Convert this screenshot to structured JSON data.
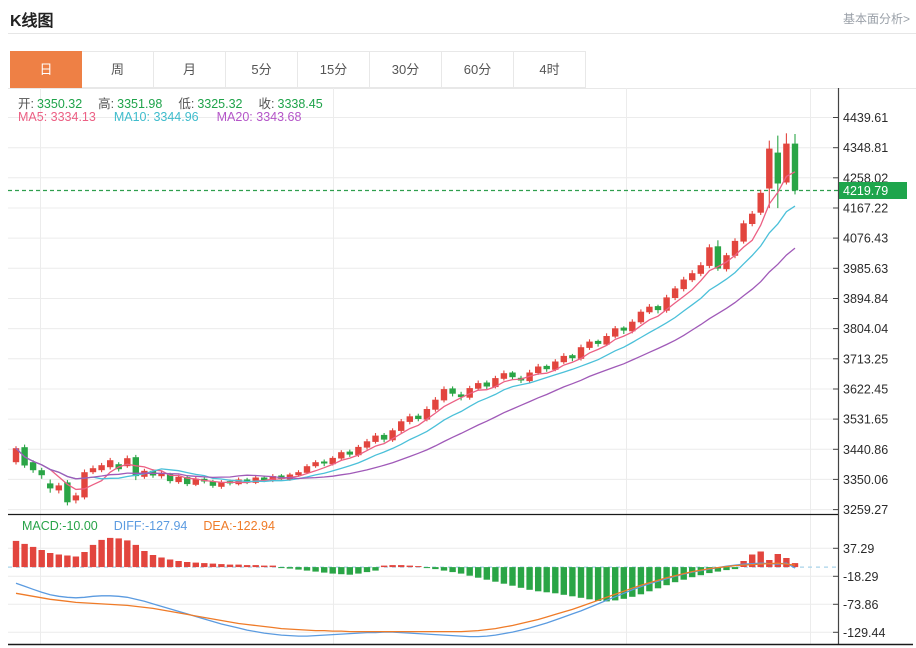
{
  "header": {
    "title": "K线图",
    "link": "基本面分析>"
  },
  "tabs": {
    "items": [
      {
        "label": "日",
        "active": true
      },
      {
        "label": "周",
        "active": false
      },
      {
        "label": "月",
        "active": false
      },
      {
        "label": "5分",
        "active": false
      },
      {
        "label": "15分",
        "active": false
      },
      {
        "label": "30分",
        "active": false
      },
      {
        "label": "60分",
        "active": false
      },
      {
        "label": "4时",
        "active": false
      }
    ]
  },
  "legend": {
    "ohlc": {
      "o_label": "开:",
      "o": "3350.32",
      "h_label": "高:",
      "h": "3351.98",
      "l_label": "低:",
      "l": "3325.32",
      "c_label": "收:",
      "c": "3338.45"
    },
    "ma": {
      "ma5": "MA5: 3334.13",
      "ma10": "MA10: 3344.96",
      "ma20": "MA20: 3343.68"
    },
    "macd": {
      "macd": "MACD:-10.00",
      "diff": "DIFF:-127.94",
      "dea": "DEA:-122.94"
    }
  },
  "colors": {
    "up": "#e2453e",
    "down": "#2aa546",
    "ma5": "#ec6084",
    "ma10": "#4bc0d9",
    "ma20": "#a05ab8",
    "diff_line": "#5b9be0",
    "dea_line": "#ef7b28",
    "price_tag_bg": "#1ea54c",
    "price_dashed": "#2f9e4e",
    "zero_dashed": "#a9d3ea",
    "grid": "#ececec",
    "axis": "#444444",
    "divider": "#1a1a1a",
    "tick_text": "#2b2b2b",
    "tab_active_bg": "#ee8045"
  },
  "chart_data": {
    "type": "candlestick+macd",
    "price_axis": {
      "ticks": [
        4439.61,
        4348.81,
        4258.02,
        4167.22,
        4076.43,
        3985.63,
        3894.84,
        3804.04,
        3713.25,
        3622.45,
        3531.65,
        3440.86,
        3350.06,
        3259.27
      ]
    },
    "price_line": {
      "value": 4219.79,
      "label": "4219.79"
    },
    "v_gridlines": [
      40,
      333,
      626,
      810
    ],
    "ma_windows": [
      5,
      10,
      20
    ],
    "candles": [
      [
        3402,
        3450,
        3395,
        3444
      ],
      [
        3447,
        3455,
        3385,
        3392
      ],
      [
        3402,
        3408,
        3370,
        3378
      ],
      [
        3378,
        3385,
        3352,
        3363
      ],
      [
        3338,
        3350,
        3310,
        3323
      ],
      [
        3317,
        3340,
        3308,
        3332
      ],
      [
        3341,
        3348,
        3272,
        3281
      ],
      [
        3287,
        3310,
        3278,
        3302
      ],
      [
        3296,
        3380,
        3290,
        3372
      ],
      [
        3372,
        3392,
        3366,
        3384
      ],
      [
        3378,
        3400,
        3372,
        3393
      ],
      [
        3387,
        3415,
        3380,
        3408
      ],
      [
        3396,
        3402,
        3374,
        3381
      ],
      [
        3390,
        3422,
        3385,
        3414
      ],
      [
        3417,
        3424,
        3348,
        3360
      ],
      [
        3358,
        3382,
        3352,
        3376
      ],
      [
        3376,
        3381,
        3355,
        3362
      ],
      [
        3360,
        3375,
        3353,
        3368
      ],
      [
        3366,
        3370,
        3338,
        3345
      ],
      [
        3342,
        3364,
        3337,
        3358
      ],
      [
        3357,
        3362,
        3330,
        3336
      ],
      [
        3334,
        3358,
        3330,
        3352
      ],
      [
        3352,
        3357,
        3338,
        3344
      ],
      [
        3344,
        3349,
        3325,
        3331
      ],
      [
        3328,
        3348,
        3322,
        3342
      ],
      [
        3345,
        3350,
        3332,
        3338
      ],
      [
        3336,
        3356,
        3332,
        3350
      ],
      [
        3350,
        3355,
        3336,
        3342
      ],
      [
        3340,
        3362,
        3336,
        3356
      ],
      [
        3356,
        3360,
        3342,
        3348
      ],
      [
        3346,
        3366,
        3342,
        3360
      ],
      [
        3362,
        3366,
        3346,
        3352
      ],
      [
        3350,
        3370,
        3346,
        3365
      ],
      [
        3363,
        3378,
        3358,
        3372
      ],
      [
        3370,
        3396,
        3366,
        3390
      ],
      [
        3390,
        3408,
        3385,
        3402
      ],
      [
        3404,
        3410,
        3390,
        3398
      ],
      [
        3396,
        3420,
        3392,
        3415
      ],
      [
        3413,
        3438,
        3408,
        3432
      ],
      [
        3434,
        3440,
        3418,
        3425
      ],
      [
        3423,
        3454,
        3418,
        3448
      ],
      [
        3446,
        3472,
        3440,
        3465
      ],
      [
        3463,
        3490,
        3458,
        3482
      ],
      [
        3484,
        3490,
        3462,
        3470
      ],
      [
        3468,
        3504,
        3463,
        3498
      ],
      [
        3496,
        3532,
        3490,
        3525
      ],
      [
        3523,
        3548,
        3516,
        3540
      ],
      [
        3542,
        3548,
        3525,
        3532
      ],
      [
        3530,
        3570,
        3525,
        3562
      ],
      [
        3560,
        3598,
        3554,
        3590
      ],
      [
        3588,
        3630,
        3582,
        3622
      ],
      [
        3624,
        3630,
        3600,
        3608
      ],
      [
        3606,
        3614,
        3588,
        3598
      ],
      [
        3596,
        3632,
        3590,
        3625
      ],
      [
        3623,
        3648,
        3618,
        3640
      ],
      [
        3642,
        3648,
        3622,
        3630
      ],
      [
        3628,
        3662,
        3624,
        3655
      ],
      [
        3653,
        3678,
        3648,
        3670
      ],
      [
        3672,
        3676,
        3650,
        3658
      ],
      [
        3656,
        3662,
        3640,
        3648
      ],
      [
        3646,
        3680,
        3642,
        3672
      ],
      [
        3670,
        3698,
        3665,
        3690
      ],
      [
        3692,
        3696,
        3674,
        3682
      ],
      [
        3680,
        3712,
        3676,
        3705
      ],
      [
        3703,
        3730,
        3698,
        3722
      ],
      [
        3724,
        3728,
        3706,
        3715
      ],
      [
        3713,
        3756,
        3708,
        3748
      ],
      [
        3746,
        3772,
        3740,
        3765
      ],
      [
        3767,
        3771,
        3750,
        3758
      ],
      [
        3756,
        3790,
        3752,
        3782
      ],
      [
        3780,
        3812,
        3775,
        3805
      ],
      [
        3807,
        3811,
        3788,
        3798
      ],
      [
        3796,
        3832,
        3790,
        3825
      ],
      [
        3823,
        3862,
        3818,
        3855
      ],
      [
        3853,
        3878,
        3848,
        3870
      ],
      [
        3872,
        3876,
        3850,
        3860
      ],
      [
        3858,
        3906,
        3852,
        3898
      ],
      [
        3896,
        3932,
        3890,
        3925
      ],
      [
        3923,
        3960,
        3916,
        3952
      ],
      [
        3950,
        3980,
        3944,
        3971
      ],
      [
        3969,
        4004,
        3962,
        3995
      ],
      [
        3993,
        4058,
        3986,
        4049
      ],
      [
        4052,
        4070,
        3978,
        3985
      ],
      [
        3983,
        4032,
        3976,
        4025
      ],
      [
        4023,
        4076,
        4016,
        4068
      ],
      [
        4066,
        4130,
        4060,
        4121
      ],
      [
        4119,
        4158,
        4112,
        4150
      ],
      [
        4153,
        4222,
        4146,
        4213
      ],
      [
        4226,
        4370,
        4167,
        4346
      ],
      [
        4334,
        4385,
        4167,
        4241
      ],
      [
        4244,
        4392,
        4238,
        4361
      ],
      [
        4361,
        4390,
        4208,
        4220
      ]
    ],
    "macd_axis": {
      "ticks": [
        37.29,
        -18.29,
        -73.86,
        -129.44
      ]
    },
    "macd": {
      "hist": [
        52,
        46,
        40,
        34,
        28,
        25,
        23,
        21,
        30,
        44,
        54,
        58,
        57,
        53,
        44,
        32,
        24,
        19,
        15,
        12,
        10,
        9,
        8,
        7,
        6,
        5,
        5,
        4,
        4,
        3,
        3,
        -2,
        -3,
        -5,
        -7,
        -9,
        -11,
        -13,
        -14,
        -15,
        -13,
        -10,
        -7,
        3,
        4,
        4,
        3,
        2,
        -2,
        -4,
        -7,
        -10,
        -13,
        -17,
        -21,
        -25,
        -29,
        -33,
        -37,
        -41,
        -45,
        -48,
        -50,
        -52,
        -55,
        -58,
        -61,
        -64,
        -67,
        -68,
        -66,
        -63,
        -59,
        -54,
        -48,
        -42,
        -36,
        -30,
        -25,
        -20,
        -16,
        -12,
        -9,
        -6,
        -4,
        12,
        25,
        31,
        14,
        26,
        18,
        8
      ],
      "diff": [
        -32,
        -38,
        -44,
        -50,
        -55,
        -58,
        -60,
        -61,
        -60,
        -58,
        -57,
        -57,
        -58,
        -60,
        -64,
        -68,
        -73,
        -78,
        -83,
        -88,
        -93,
        -98,
        -103,
        -108,
        -113,
        -117,
        -121,
        -125,
        -128,
        -131,
        -133,
        -135,
        -136,
        -137,
        -137,
        -136,
        -135,
        -134,
        -133,
        -132,
        -131,
        -130,
        -130,
        -129,
        -129,
        -130,
        -131,
        -132,
        -133,
        -134,
        -135,
        -136,
        -137,
        -138,
        -138,
        -137,
        -135,
        -132,
        -129,
        -125,
        -121,
        -116,
        -111,
        -105,
        -99,
        -93,
        -87,
        -80,
        -73,
        -66,
        -59,
        -52,
        -45,
        -39,
        -33,
        -28,
        -23,
        -18,
        -14,
        -10,
        -7,
        -4,
        -1,
        2,
        4,
        6,
        7,
        8,
        7,
        6,
        8,
        -2
      ],
      "dea": [
        -52,
        -55,
        -58,
        -61,
        -64,
        -66,
        -68,
        -70,
        -71,
        -72,
        -73,
        -74,
        -75,
        -76,
        -78,
        -80,
        -82,
        -85,
        -88,
        -91,
        -94,
        -97,
        -100,
        -103,
        -106,
        -109,
        -112,
        -114,
        -116,
        -118,
        -120,
        -122,
        -123,
        -124,
        -125,
        -126,
        -126,
        -127,
        -127,
        -128,
        -128,
        -128,
        -128,
        -128,
        -128,
        -128,
        -128,
        -128,
        -128,
        -128,
        -128,
        -128,
        -128,
        -127,
        -126,
        -124,
        -122,
        -119,
        -116,
        -112,
        -108,
        -104,
        -99,
        -94,
        -89,
        -84,
        -78,
        -72,
        -66,
        -60,
        -54,
        -48,
        -42,
        -36,
        -31,
        -26,
        -21,
        -17,
        -13,
        -9,
        -6,
        -3,
        -1,
        1,
        3,
        4,
        5,
        6,
        7,
        8,
        6,
        4
      ]
    }
  }
}
